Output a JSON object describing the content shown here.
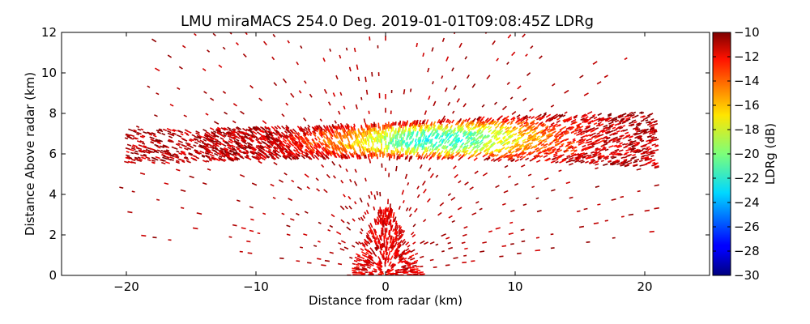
{
  "chart_data": {
    "type": "heatmap",
    "title": "LMU miraMACS 254.0 Deg. 2019-01-01T09:08:45Z  LDRg",
    "xlabel": "Distance from radar (km)",
    "ylabel": "Distance Above radar  (km)",
    "xlim": [
      -25,
      25
    ],
    "ylim": [
      0,
      12
    ],
    "x_ticks": [
      -20,
      -10,
      0,
      10,
      20
    ],
    "x_tick_labels": [
      "−20",
      "−10",
      "0",
      "10",
      "20"
    ],
    "y_ticks": [
      0,
      2,
      4,
      6,
      8,
      10,
      12
    ],
    "y_tick_labels": [
      "0",
      "2",
      "4",
      "6",
      "8",
      "10",
      "12"
    ],
    "colorbar": {
      "label": "LDRg (dB)",
      "range": [
        -30,
        -10
      ],
      "ticks": [
        -30,
        -28,
        -26,
        -24,
        -22,
        -20,
        -18,
        -16,
        -14,
        -12,
        -10
      ],
      "tick_labels": [
        "−30",
        "−28",
        "−26",
        "−24",
        "−22",
        "−20",
        "−18",
        "−16",
        "−14",
        "−12",
        "−10"
      ],
      "colormap": "jet"
    },
    "scan": {
      "azimuth_deg": 254.0,
      "timestamp": "2019-01-01T09:08:45Z",
      "max_range_km": 21.5
    },
    "features": [
      {
        "kind": "cloud_layer",
        "x_range": [
          -20,
          21
        ],
        "y_top_range": [
          7.2,
          8.1
        ],
        "y_bottom_range": [
          4.8,
          5.8
        ],
        "core_ldr": -22,
        "edge_ldr": -11
      },
      {
        "kind": "near_radar_clutter",
        "x_range": [
          -2.5,
          2.5
        ],
        "y_range": [
          0,
          3.3
        ],
        "ldr": -11
      },
      {
        "kind": "scattered_noise",
        "ldr": -11
      }
    ]
  }
}
